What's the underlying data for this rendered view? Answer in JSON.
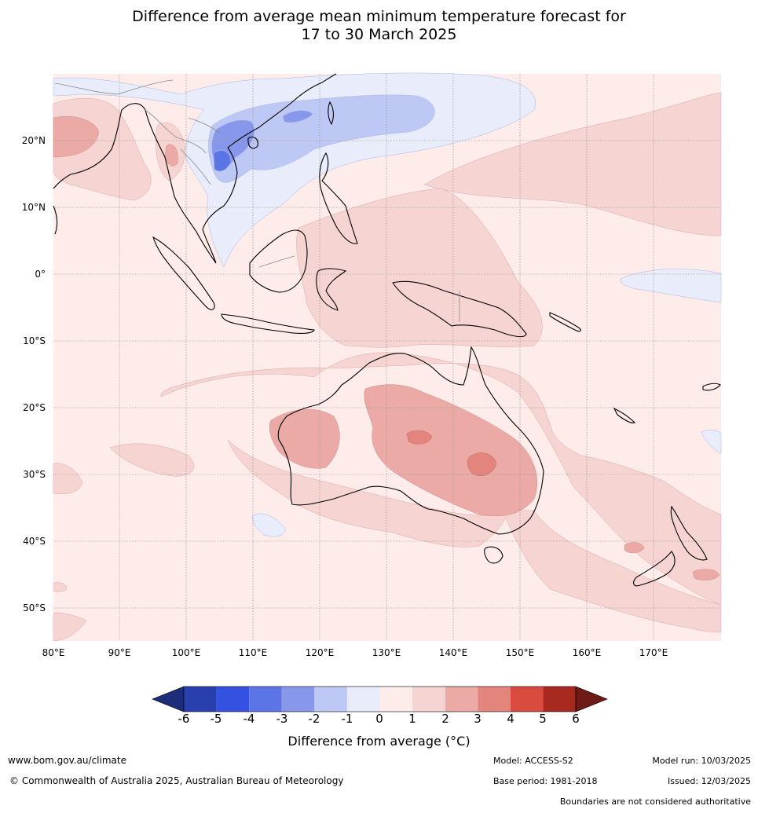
{
  "title": {
    "line1": "Difference from average mean minimum temperature forecast for",
    "line2": "17 to 30 March 2025"
  },
  "map": {
    "lat_labels": [
      "20°N",
      "10°N",
      "0°",
      "10°S",
      "20°S",
      "30°S",
      "40°S",
      "50°S"
    ],
    "lon_labels": [
      "80°E",
      "90°E",
      "100°E",
      "110°E",
      "120°E",
      "130°E",
      "140°E",
      "150°E",
      "160°E",
      "170°E"
    ]
  },
  "colorbar": {
    "ticks": [
      "-6",
      "-5",
      "-4",
      "-3",
      "-2",
      "-1",
      "0",
      "1",
      "2",
      "3",
      "4",
      "5",
      "6"
    ],
    "colors": [
      "#2a3fae",
      "#3451e0",
      "#5b74e6",
      "#8798ec",
      "#bec8f4",
      "#e8ecfb",
      "#fdecea",
      "#f5d4d2",
      "#ebaaa6",
      "#e3847d",
      "#d94a3f",
      "#a8291f"
    ],
    "under_color": "#1e2d7a",
    "over_color": "#6e1a17",
    "label": "Difference from average (°C)"
  },
  "footer": {
    "website": "www.bom.gov.au/climate",
    "copyright": "© Commonwealth of Australia 2025, Australian Bureau of Meteorology",
    "model": "Model: ACCESS-S2",
    "base_period": "Base period: 1981-2018",
    "model_run": "Model run: 10/03/2025",
    "issued": "Issued: 12/03/2025",
    "disclaimer": "Boundaries are not considered authoritative"
  }
}
